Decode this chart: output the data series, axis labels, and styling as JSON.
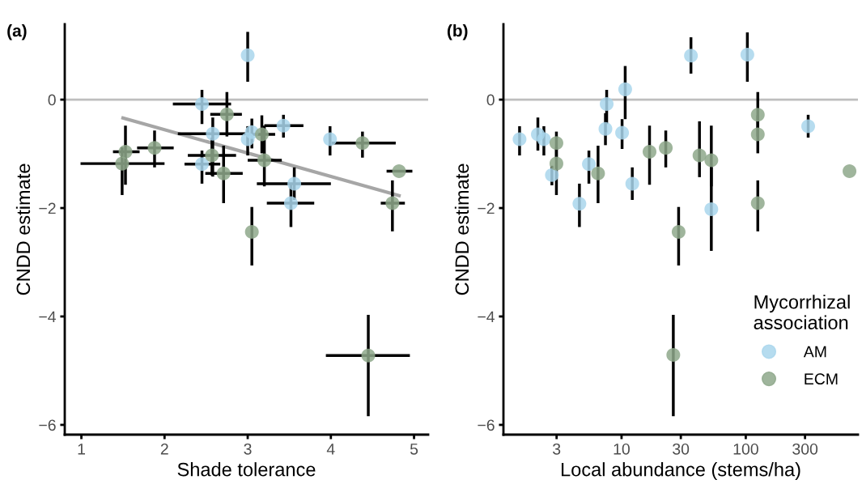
{
  "chart_data": [
    {
      "type": "scatter",
      "title": "(a)",
      "xlabel": "Shade tolerance",
      "ylabel": "CNDD estimate",
      "xlim": [
        0.8,
        5.17
      ],
      "xticks": [
        1,
        2,
        3,
        4,
        5
      ],
      "ylim": [
        -6.18,
        1.39
      ],
      "yticks": [
        -6,
        -4,
        -2,
        0
      ],
      "grid": false,
      "legend": false,
      "marker": "circle",
      "ref_lines": [
        {
          "axis": "y",
          "value": 0,
          "color": "#bebebe"
        }
      ],
      "series": [
        {
          "color": "#a9d6ec",
          "x": [
            3.0,
            2.45,
            2.58,
            3.05,
            3.0,
            3.43,
            3.99,
            3.56,
            3.52,
            2.45
          ],
          "values": [
            0.82,
            -0.08,
            -0.63,
            -0.6,
            -0.73,
            -0.48,
            -0.73,
            -1.55,
            -1.91,
            -1.19
          ],
          "errors": [
            [
              0.33,
              1.25
            ],
            [
              -0.45,
              0.18
            ],
            [
              -1.42,
              -0.33
            ],
            [
              -0.9,
              -0.35
            ],
            [
              -1.03,
              -0.49
            ],
            [
              -0.7,
              -0.28
            ],
            [
              -1.03,
              -0.49
            ],
            [
              -1.85,
              -1.25
            ],
            [
              -2.35,
              -1.55
            ],
            [
              -1.55,
              -0.94
            ]
          ],
          "xerrors": [
            null,
            [
              2.1,
              2.8
            ],
            [
              2.16,
              3.0
            ],
            null,
            null,
            [
              3.2,
              3.67
            ],
            null,
            [
              3.11,
              4.0
            ],
            [
              3.23,
              3.8
            ],
            [
              2.24,
              2.67
            ]
          ]
        },
        {
          "color": "#8ea88b",
          "x": [
            2.75,
            3.17,
            3.2,
            4.38,
            4.82,
            4.74,
            3.05,
            2.71,
            2.57,
            1.88,
            1.53,
            1.49,
            4.45
          ],
          "values": [
            -0.27,
            -0.64,
            -1.12,
            -0.8,
            -1.32,
            -1.91,
            -2.44,
            -1.36,
            -1.03,
            -0.89,
            -0.96,
            -1.18,
            -4.72
          ],
          "errors": [
            [
              -0.68,
              0.14
            ],
            [
              -0.99,
              -0.29
            ],
            [
              -1.6,
              -0.48
            ],
            [
              -1.07,
              -0.59
            ],
            null,
            [
              -2.43,
              -1.49
            ],
            [
              -3.06,
              -1.98
            ],
            [
              -1.91,
              -0.85
            ],
            [
              -1.4,
              -0.7
            ],
            [
              -1.25,
              -0.57
            ],
            [
              -1.57,
              -0.48
            ],
            [
              -1.76,
              -0.88
            ],
            [
              -5.84,
              -3.97
            ]
          ],
          "xerrors": [
            [
              2.55,
              2.93
            ],
            [
              3.0,
              3.33
            ],
            [
              3.0,
              3.41
            ],
            [
              4.01,
              4.78
            ],
            [
              4.67,
              4.98
            ],
            [
              4.6,
              4.89
            ],
            null,
            [
              2.49,
              2.94
            ],
            [
              2.28,
              2.86
            ],
            [
              1.67,
              2.11
            ],
            [
              1.38,
              1.7
            ],
            [
              0.99,
              2.0
            ],
            [
              3.94,
              4.95
            ]
          ]
        },
        {
          "type": "line",
          "marker": "none",
          "color": "#a6a6a6",
          "x": [
            1.5,
            4.82
          ],
          "values": [
            -0.34,
            -1.77
          ]
        }
      ]
    },
    {
      "type": "scatter",
      "title": "(b)",
      "xlabel": "Local abundance (stems/ha)",
      "ylabel": "CNDD estimate",
      "log": "x",
      "xlim": [
        1.12,
        800
      ],
      "xticks": [
        3,
        10,
        30,
        100,
        300
      ],
      "ylim": [
        -6.18,
        1.39
      ],
      "yticks": [
        -6,
        -4,
        -2,
        0
      ],
      "grid": false,
      "legend": "bottom right",
      "legend_title": "Mycorrhizal\nassociation",
      "marker": "circle",
      "ref_lines": [
        {
          "axis": "y",
          "value": 0,
          "color": "#bebebe"
        }
      ],
      "series": [
        {
          "name": "AM",
          "color": "#a9d6ec",
          "x": [
            1.51,
            2.12,
            2.37,
            2.75,
            4.58,
            5.46,
            7.42,
            7.59,
            10.1,
            10.7,
            12.2,
            36.2,
            52.8,
            103,
            318
          ],
          "values": [
            -0.73,
            -0.64,
            -0.73,
            -1.39,
            -1.92,
            -1.19,
            -0.54,
            -0.08,
            -0.61,
            0.19,
            -1.55,
            0.81,
            -2.02,
            0.83,
            -0.49
          ],
          "errors": [
            [
              -1.03,
              -0.49
            ],
            [
              -0.94,
              -0.33
            ],
            [
              -1.03,
              -0.49
            ],
            [
              -1.58,
              -1.22
            ],
            [
              -2.35,
              -1.55
            ],
            [
              -1.55,
              -0.94
            ],
            [
              -0.84,
              -0.25
            ],
            [
              -0.45,
              0.18
            ],
            [
              -0.91,
              -0.36
            ],
            [
              -0.36,
              0.62
            ],
            [
              -1.85,
              -1.25
            ],
            [
              0.48,
              1.15
            ],
            [
              -2.79,
              -1.25
            ],
            [
              0.33,
              1.24
            ],
            [
              -0.7,
              -0.28
            ]
          ]
        },
        {
          "name": "ECM",
          "color": "#8ea88b",
          "x": [
            2.99,
            2.99,
            6.47,
            16.8,
            22.7,
            28.8,
            42.4,
            52.8,
            125,
            125,
            125,
            684,
            26.1
          ],
          "values": [
            -0.8,
            -1.18,
            -1.36,
            -0.96,
            -0.89,
            -2.44,
            -1.03,
            -1.12,
            -0.28,
            -0.64,
            -1.91,
            -1.32,
            -4.71
          ],
          "errors": [
            [
              -1.07,
              -0.59
            ],
            [
              -1.76,
              -0.88
            ],
            [
              -1.91,
              -0.85
            ],
            [
              -1.57,
              -0.48
            ],
            [
              -1.25,
              -0.57
            ],
            [
              -3.06,
              -1.98
            ],
            [
              -1.43,
              -0.4
            ],
            [
              -1.6,
              -0.48
            ],
            [
              -0.68,
              0.14
            ],
            [
              -0.99,
              -0.29
            ],
            [
              -2.43,
              -1.49
            ],
            null,
            [
              -5.84,
              -3.97
            ]
          ]
        }
      ]
    }
  ]
}
